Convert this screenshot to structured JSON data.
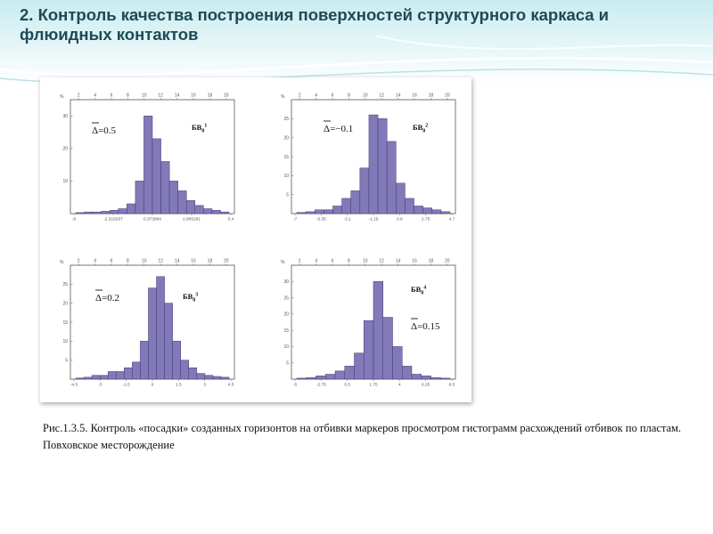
{
  "slide": {
    "title": "2. Контроль качества построения поверхностей структурного каркаса и флюидных контактов",
    "caption": "Рис.1.3.5. Контроль «посадки» созданных горизонтов на отбивки маркеров просмотром гистограмм расхождений отбивок по пластам. Повховское месторождение"
  },
  "colors": {
    "bar_fill": "#8279b8",
    "bar_stroke": "#3f3a73",
    "title": "#1e4a56",
    "header_band": "#c9ecf0"
  },
  "chart_data": [
    {
      "type": "bar",
      "ylabel": "%",
      "top_ticks": [
        "2",
        "4",
        "6",
        "8",
        "10",
        "12",
        "14",
        "16",
        "18",
        "20"
      ],
      "bottom_ticks": [
        "-6",
        "-2.316267",
        "0.373806",
        "2.905281",
        "5.4"
      ],
      "y_ticks": [
        "10",
        "20",
        "30"
      ],
      "ylim": [
        0,
        35
      ],
      "values": [
        0.3,
        0.5,
        0.5,
        0.7,
        1,
        1.5,
        3,
        10,
        30,
        23,
        16,
        10,
        7,
        4,
        2.5,
        1.5,
        1,
        0.5
      ],
      "legend": {
        "name_main": "БВ",
        "name_sub": "8",
        "name_sup": "1",
        "delta_value": "=0.5"
      }
    },
    {
      "type": "bar",
      "ylabel": "%",
      "top_ticks": [
        "2",
        "4",
        "6",
        "8",
        "10",
        "12",
        "14",
        "16",
        "18",
        "20"
      ],
      "bottom_ticks": [
        "-7",
        "-5.35",
        "-3.1",
        "-1.15",
        "0.6",
        "2.75",
        "4.7"
      ],
      "y_ticks": [
        "5",
        "10",
        "15",
        "20",
        "25"
      ],
      "ylim": [
        0,
        30
      ],
      "values": [
        0.3,
        0.5,
        1,
        1,
        2,
        4,
        6,
        12,
        26,
        25,
        19,
        8,
        4,
        2,
        1.5,
        1,
        0.5
      ],
      "legend": {
        "name_main": "БВ",
        "name_sub": "8",
        "name_sup": "2",
        "delta_value": "=−0.1"
      }
    },
    {
      "type": "bar",
      "ylabel": "%",
      "top_ticks": [
        "2",
        "4",
        "6",
        "8",
        "10",
        "12",
        "14",
        "16",
        "18",
        "20"
      ],
      "bottom_ticks": [
        "-4.5",
        "-3",
        "-1.5",
        "0",
        "1.5",
        "3",
        "4.5"
      ],
      "y_ticks": [
        "5",
        "10",
        "15",
        "20",
        "25"
      ],
      "ylim": [
        0,
        30
      ],
      "values": [
        0.3,
        0.5,
        1,
        1,
        2,
        2,
        3,
        4.5,
        10,
        24,
        27,
        20,
        10,
        5,
        3,
        1.5,
        1,
        0.7,
        0.5
      ],
      "legend": {
        "name_main": "БВ",
        "name_sub": "8",
        "name_sup": "3",
        "delta_value": "=0.2"
      }
    },
    {
      "type": "bar",
      "ylabel": "%",
      "top_ticks": [
        "2",
        "4",
        "6",
        "8",
        "10",
        "12",
        "14",
        "16",
        "18",
        "20"
      ],
      "bottom_ticks": [
        "-5",
        "-2.75",
        "0.5",
        "1.75",
        "4",
        "6.25",
        "8.5"
      ],
      "y_ticks": [
        "5",
        "10",
        "15",
        "20",
        "25",
        "30"
      ],
      "ylim": [
        0,
        35
      ],
      "values": [
        0.3,
        0.5,
        1,
        1.5,
        2.5,
        4,
        8,
        18,
        30,
        19,
        10,
        4,
        1.5,
        1,
        0.5,
        0.3
      ],
      "legend": {
        "name_main": "БВ",
        "name_sub": "8",
        "name_sup": "4",
        "delta_value": "=0.15"
      }
    }
  ]
}
